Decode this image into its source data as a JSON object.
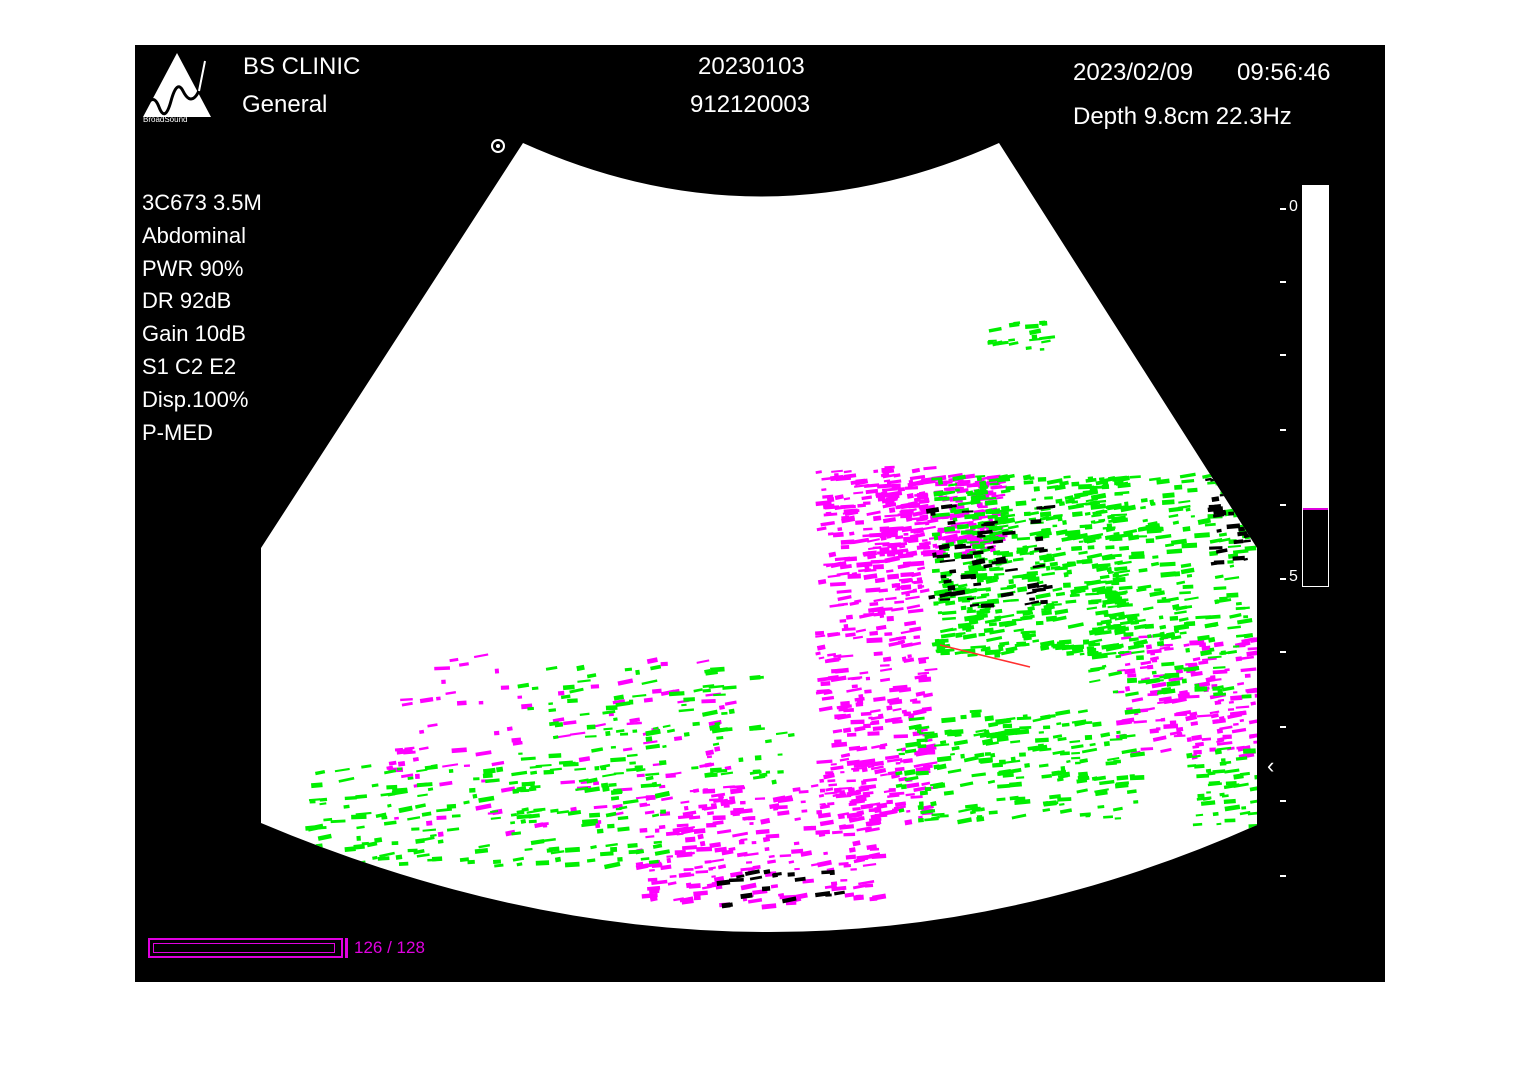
{
  "header": {
    "clinic": "BS CLINIC",
    "preset_group": "General",
    "study_date": "20230103",
    "patient_id": "912120003",
    "datetime_date": "2023/02/09",
    "datetime_time": "09:56:46",
    "depth_freq": "Depth 9.8cm  22.3Hz"
  },
  "logo": {
    "icon": "broadsound-logo-icon",
    "text": "BroadSound"
  },
  "params": [
    "3C673 3.5M",
    "Abdominal",
    "PWR 90%",
    "DR 92dB",
    "Gain 10dB",
    "S1 C2 E2",
    "Disp.100%",
    "P-MED"
  ],
  "depth_scale": {
    "top_label": "0",
    "mid_label": "5",
    "fill_fraction": 0.81
  },
  "cine": {
    "count": "126 / 128",
    "progress": 0.984
  },
  "colors": {
    "background": "#000000",
    "image": "#ffffff",
    "speckle_a": "#ff00ff",
    "speckle_b": "#00ee00",
    "accent": "#e000e0"
  },
  "icons": {
    "focus": "focus-marker-icon",
    "orientation": "orientation-marker-icon"
  }
}
